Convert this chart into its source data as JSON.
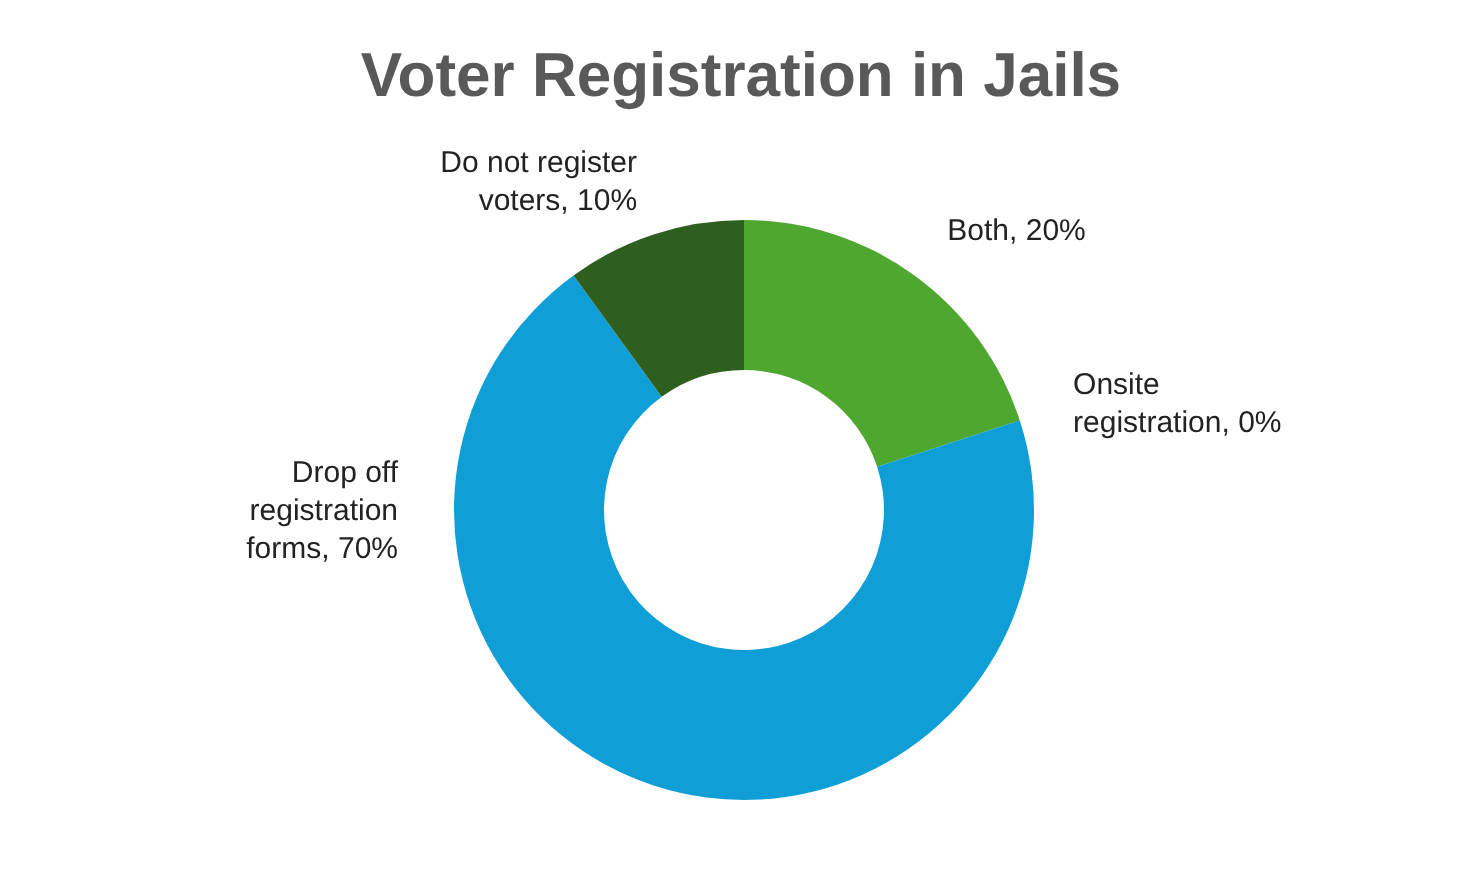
{
  "chart_data": {
    "type": "donut",
    "title": "Voter Registration in Jails",
    "categories": [
      "Both",
      "Onsite registration",
      "Drop off registration forms",
      "Do not register voters"
    ],
    "values": [
      20,
      0,
      70,
      10
    ],
    "colors": [
      "#4ea72e",
      "#e97132",
      "#0f9ed5",
      "#2f5f1e"
    ],
    "value_labels": [
      ", 20%",
      ", 0%",
      ", 70%",
      ", 10%"
    ],
    "legend": false
  }
}
